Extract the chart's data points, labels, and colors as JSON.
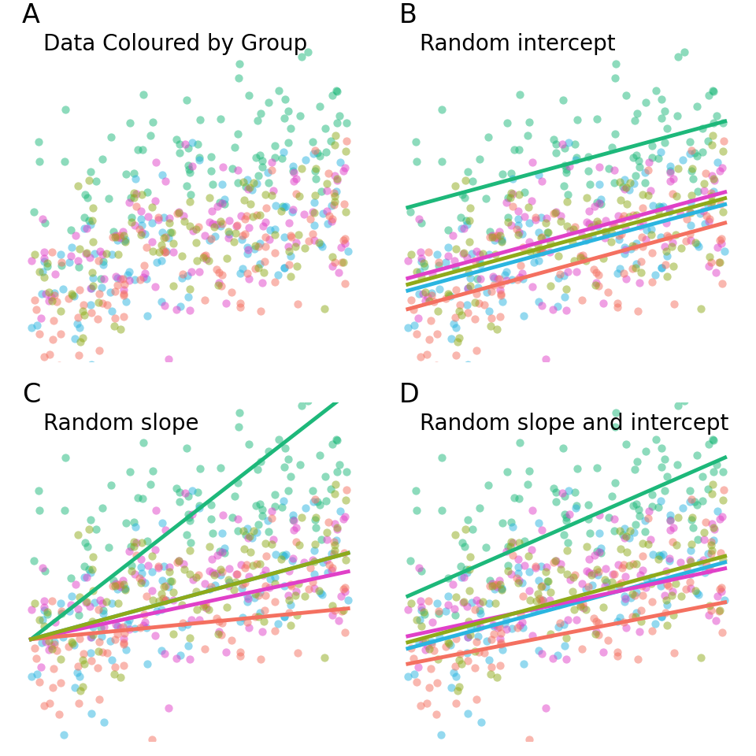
{
  "title_A": "Data Coloured by Group",
  "title_B": "Random intercept",
  "title_C": "Random slope",
  "title_D": "Random slope and intercept",
  "label_A": "A",
  "label_B": "B",
  "label_C": "C",
  "label_D": "D",
  "group_colors": [
    "#1db87a",
    "#2ab5e0",
    "#e040c8",
    "#f47060",
    "#8faa1a"
  ],
  "background_color": "#ffffff",
  "line_width": 3.5,
  "point_alpha": 0.5,
  "point_size": 55,
  "title_fontsize": 20,
  "label_fontsize": 24,
  "n_per_group": 100
}
